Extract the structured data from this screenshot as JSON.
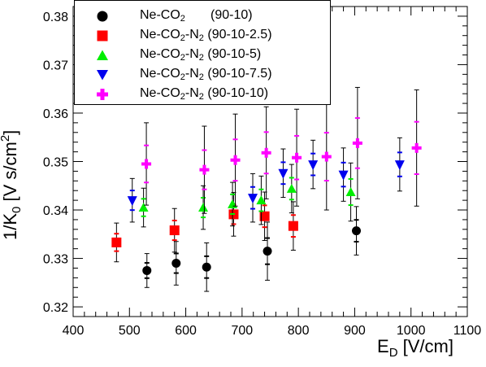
{
  "chart_data": {
    "type": "scatter",
    "xlabel": {
      "main": "E",
      "sub": "D",
      "rest": " [V/cm]"
    },
    "ylabel": {
      "main": "1/K",
      "sub": "0",
      "rest": " [V s/cm",
      "sup": "2",
      "tail": "]"
    },
    "xlim": [
      400,
      1100
    ],
    "ylim": [
      0.318,
      0.382
    ],
    "xticks": [
      "400",
      "500",
      "600",
      "700",
      "800",
      "900",
      "1000",
      "1100"
    ],
    "yticks": [
      "0.32",
      "0.33",
      "0.34",
      "0.35",
      "0.36",
      "0.37",
      "0.38"
    ],
    "grid": false,
    "legend_position": "top-left",
    "series": [
      {
        "legend_label": {
          "pre": "Ne-CO",
          "sub": "2",
          "post": "",
          "mix": "       (90-10)"
        },
        "marker": "circle",
        "color": "#000000",
        "points": [
          {
            "x": 531,
            "y": 0.3275,
            "err": 0.0035
          },
          {
            "x": 583,
            "y": 0.329,
            "err": 0.0045
          },
          {
            "x": 637,
            "y": 0.3282,
            "err": 0.005
          },
          {
            "x": 745,
            "y": 0.3315,
            "err": 0.006
          },
          {
            "x": 903,
            "y": 0.3357,
            "err": 0.005
          }
        ]
      },
      {
        "legend_label": {
          "pre": "Ne-CO",
          "sub": "2",
          "post": "-N",
          "sub2": "2",
          "mix": " (90-10-2.5)"
        },
        "marker": "square",
        "color": "#ff0000",
        "points": [
          {
            "x": 477,
            "y": 0.3333,
            "err": 0.004
          },
          {
            "x": 580,
            "y": 0.3358,
            "err": 0.0045
          },
          {
            "x": 685,
            "y": 0.3391,
            "err": 0.0045
          },
          {
            "x": 740,
            "y": 0.3387,
            "err": 0.005
          },
          {
            "x": 791,
            "y": 0.3367,
            "err": 0.005
          }
        ]
      },
      {
        "legend_label": {
          "pre": "Ne-CO",
          "sub": "2",
          "post": "-N",
          "sub2": "2",
          "mix": " (90-10-5)"
        },
        "marker": "triangle-up",
        "color": "#00ee00",
        "points": [
          {
            "x": 525,
            "y": 0.3405,
            "err": 0.004
          },
          {
            "x": 631,
            "y": 0.3405,
            "err": 0.0045
          },
          {
            "x": 683,
            "y": 0.3412,
            "err": 0.0045
          },
          {
            "x": 734,
            "y": 0.342,
            "err": 0.005
          },
          {
            "x": 788,
            "y": 0.3444,
            "err": 0.005
          },
          {
            "x": 893,
            "y": 0.3437,
            "err": 0.006
          }
        ]
      },
      {
        "legend_label": {
          "pre": "Ne-CO",
          "sub": "2",
          "post": "-N",
          "sub2": "2",
          "mix": " (90-10-7.5)"
        },
        "marker": "triangle-down",
        "color": "#0000ee",
        "points": [
          {
            "x": 505,
            "y": 0.342,
            "err": 0.0045
          },
          {
            "x": 719,
            "y": 0.3425,
            "err": 0.005
          },
          {
            "x": 773,
            "y": 0.3476,
            "err": 0.005
          },
          {
            "x": 826,
            "y": 0.3494,
            "err": 0.005
          },
          {
            "x": 880,
            "y": 0.3473,
            "err": 0.0055
          },
          {
            "x": 980,
            "y": 0.3494,
            "err": 0.0055
          }
        ]
      },
      {
        "legend_label": {
          "pre": "Ne-CO",
          "sub": "2",
          "post": "-N",
          "sub2": "2",
          "mix": " (90-10-10)"
        },
        "marker": "plus",
        "color": "#ff00ff",
        "points": [
          {
            "x": 530,
            "y": 0.3495,
            "err": 0.0085
          },
          {
            "x": 633,
            "y": 0.3483,
            "err": 0.009
          },
          {
            "x": 688,
            "y": 0.3503,
            "err": 0.0095
          },
          {
            "x": 743,
            "y": 0.3518,
            "err": 0.0095
          },
          {
            "x": 797,
            "y": 0.3508,
            "err": 0.01
          },
          {
            "x": 850,
            "y": 0.351,
            "err": 0.011
          },
          {
            "x": 905,
            "y": 0.3538,
            "err": 0.0115
          },
          {
            "x": 1010,
            "y": 0.3528,
            "err": 0.012
          }
        ]
      }
    ]
  }
}
